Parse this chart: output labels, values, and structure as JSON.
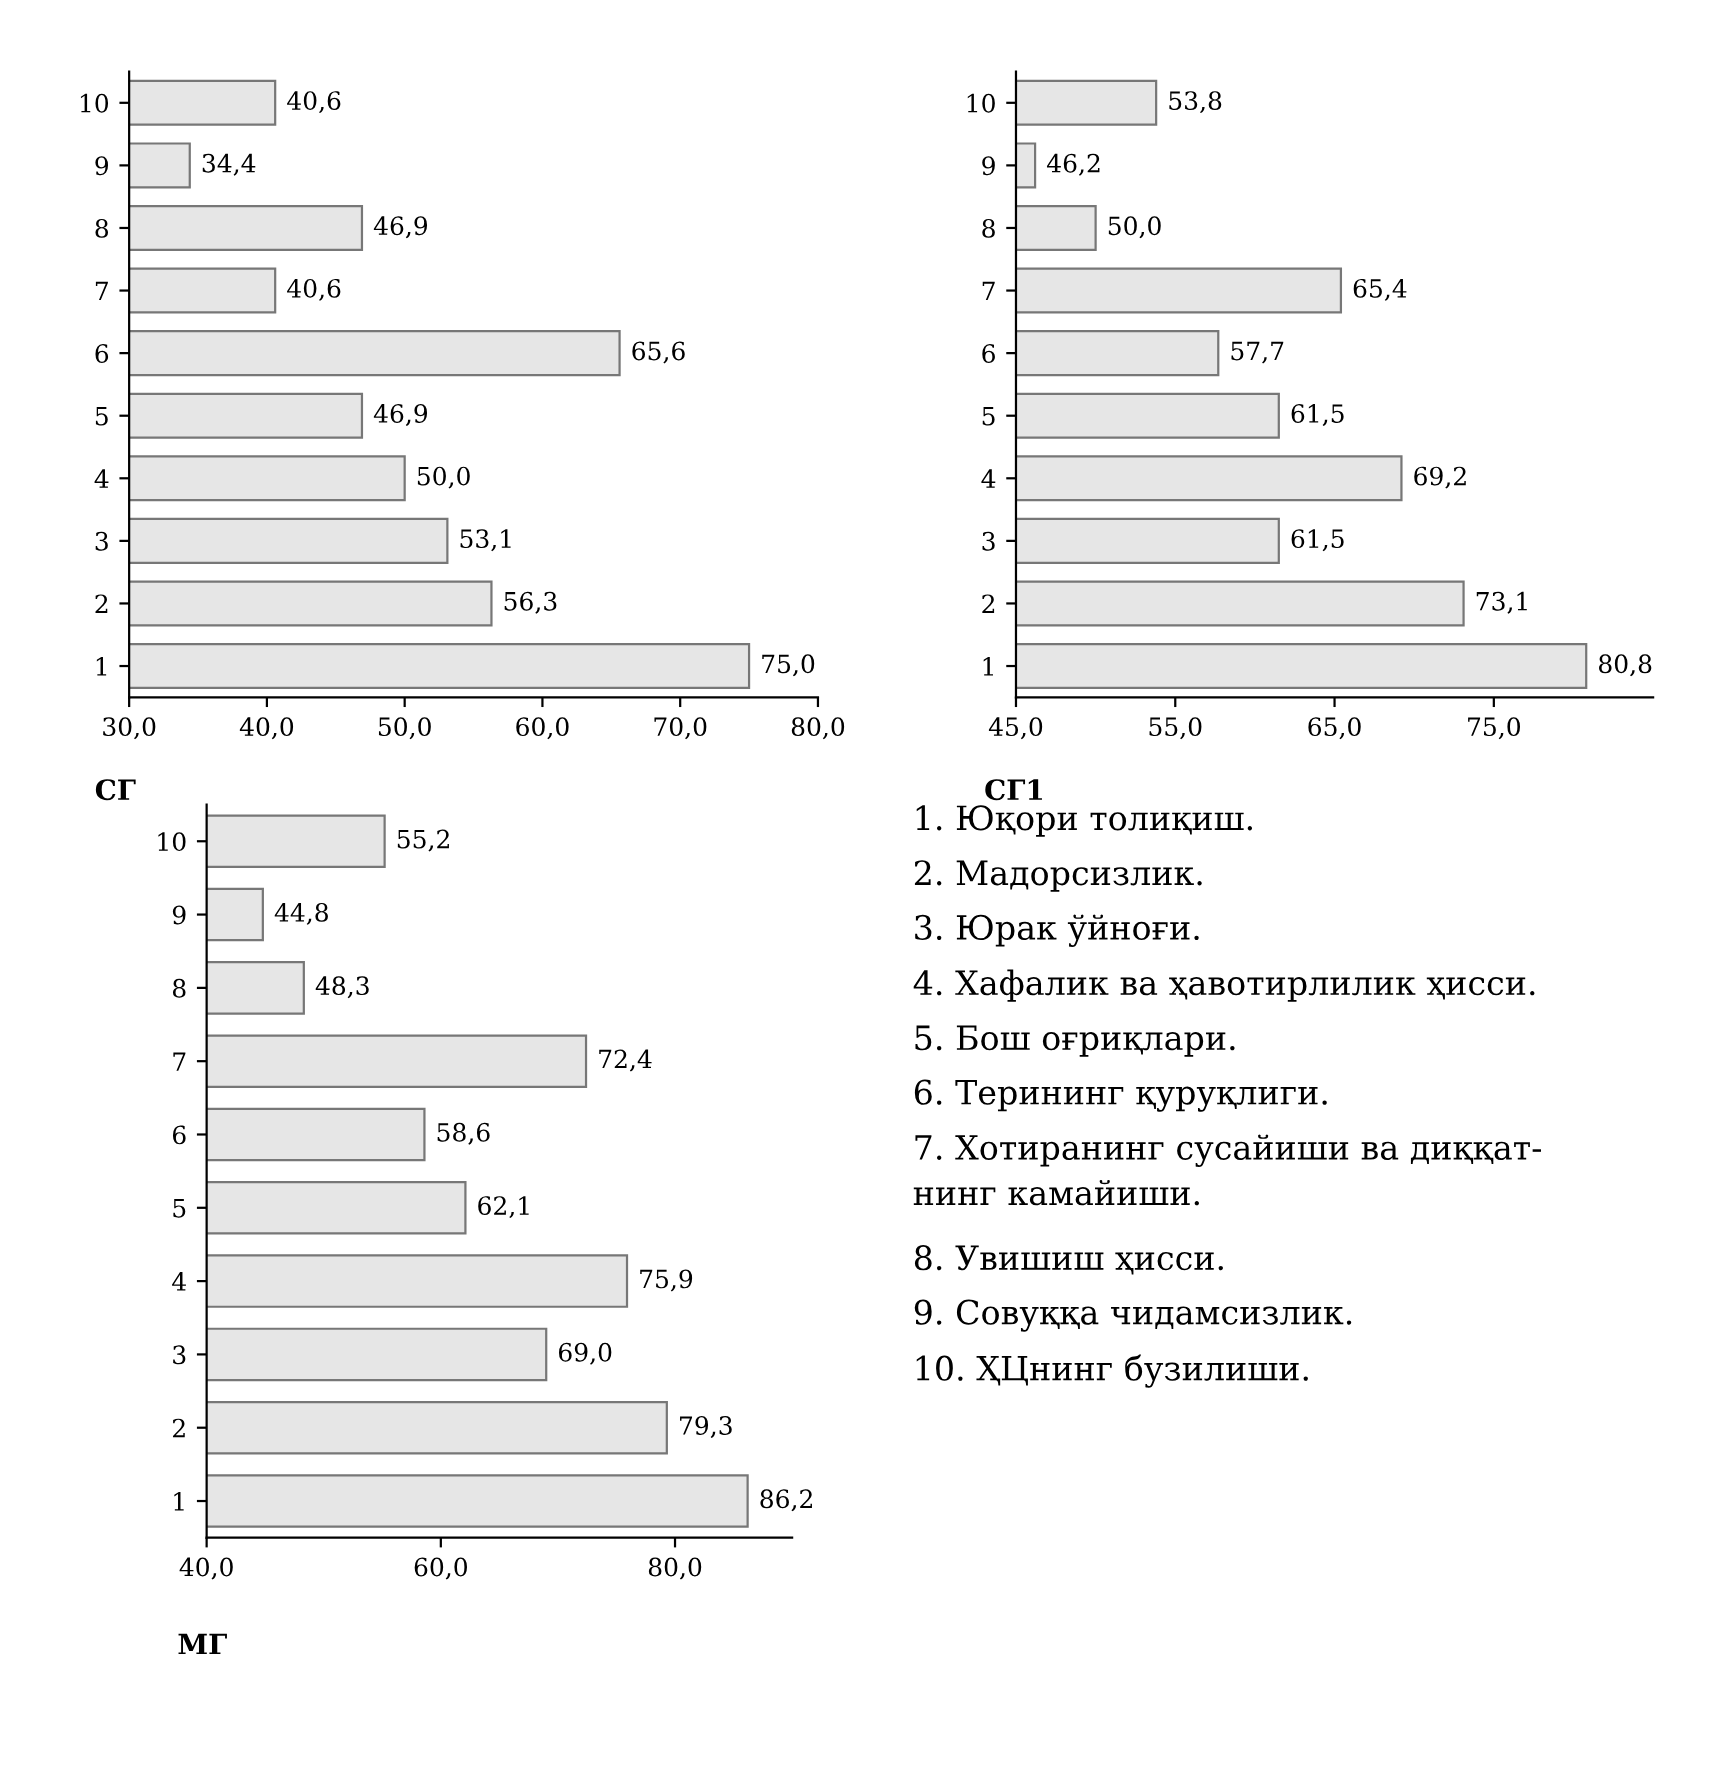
{
  "chart_data": [
    {
      "type": "bar",
      "orientation": "horizontal",
      "title": "СГ",
      "categories": [
        "10",
        "9",
        "8",
        "7",
        "6",
        "5",
        "4",
        "3",
        "2",
        "1"
      ],
      "values": [
        40.6,
        34.4,
        46.9,
        40.6,
        65.6,
        46.9,
        50.0,
        53.1,
        56.3,
        75.0
      ],
      "value_labels": [
        "40,6",
        "34,4",
        "46,9",
        "40,6",
        "65,6",
        "46,9",
        "50,0",
        "53,1",
        "56,3",
        "75,0"
      ],
      "color": "#e6e6e6",
      "xlim": [
        30,
        80
      ],
      "xticks": [
        {
          "value": 30,
          "label": "30,0"
        },
        {
          "value": 40,
          "label": "40,0"
        },
        {
          "value": 50,
          "label": "50,0"
        },
        {
          "value": 60,
          "label": "60,0"
        },
        {
          "value": 70,
          "label": "70,0"
        },
        {
          "value": 80,
          "label": "80,0"
        }
      ]
    },
    {
      "type": "bar",
      "orientation": "horizontal",
      "title": "СГ1",
      "categories": [
        "10",
        "9",
        "8",
        "7",
        "6",
        "5",
        "4",
        "3",
        "2",
        "1"
      ],
      "values": [
        53.8,
        46.2,
        50.0,
        65.4,
        57.7,
        61.5,
        69.2,
        61.5,
        73.1,
        80.8
      ],
      "value_labels": [
        "53,8",
        "46,2",
        "50,0",
        "65,4",
        "57,7",
        "61,5",
        "69,2",
        "61,5",
        "73,1",
        "80,8"
      ],
      "color": "#e6e6e6",
      "xlim": [
        45,
        85
      ],
      "xticks": [
        {
          "value": 45,
          "label": "45,0"
        },
        {
          "value": 55,
          "label": "55,0"
        },
        {
          "value": 65,
          "label": "65,0"
        },
        {
          "value": 75,
          "label": "75,0"
        }
      ]
    },
    {
      "type": "bar",
      "orientation": "horizontal",
      "title": "МГ",
      "categories": [
        "10",
        "9",
        "8",
        "7",
        "6",
        "5",
        "4",
        "3",
        "2",
        "1"
      ],
      "values": [
        55.2,
        44.8,
        48.3,
        72.4,
        58.6,
        62.1,
        75.9,
        69.0,
        79.3,
        86.2
      ],
      "value_labels": [
        "55,2",
        "44,8",
        "48,3",
        "72,4",
        "58,6",
        "62,1",
        "75,9",
        "69,0",
        "79,3",
        "86,2"
      ],
      "color": "#e6e6e6",
      "xlim": [
        40,
        90
      ],
      "xticks": [
        {
          "value": 40,
          "label": "40,0"
        },
        {
          "value": 60,
          "label": "60,0"
        },
        {
          "value": 80,
          "label": "80,0"
        }
      ]
    },
    {
      "type": "other",
      "annotations": [
        "1. Юқори толиқиш.",
        "2. Мадорсизлик.",
        "3. Юрак ўйноғи.",
        "4. Хафалик ва ҳавотирлилик ҳисси.",
        "5. Бош оғриқлари.",
        "6. Терининг қуруқлиги.",
        "7. Хотиранинг сусайиши ва диққат-\nнинг камайиши.",
        "8. Увишиш ҳисси.",
        "9. Совуққа чидамсизлик.",
        "10. ҲЦнинг бузилиши."
      ]
    }
  ]
}
